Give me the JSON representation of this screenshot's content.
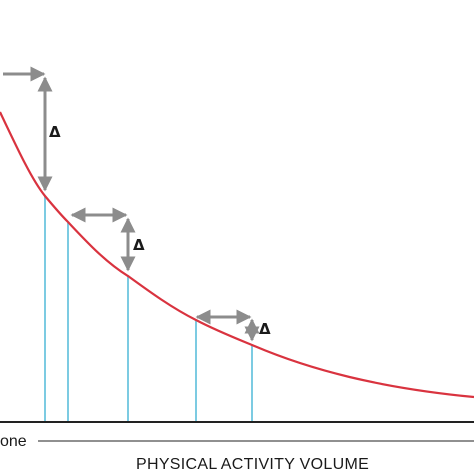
{
  "diagram": {
    "x_axis_label": "PHYSICAL ACTIVITY VOLUME",
    "x_axis_start_label": "one",
    "delta_symbol": "Δ",
    "colors": {
      "curve": "#d9333f",
      "drop_lines": "#7ccbe2",
      "arrows": "#8c8c8c",
      "axis": "#222222"
    }
  }
}
